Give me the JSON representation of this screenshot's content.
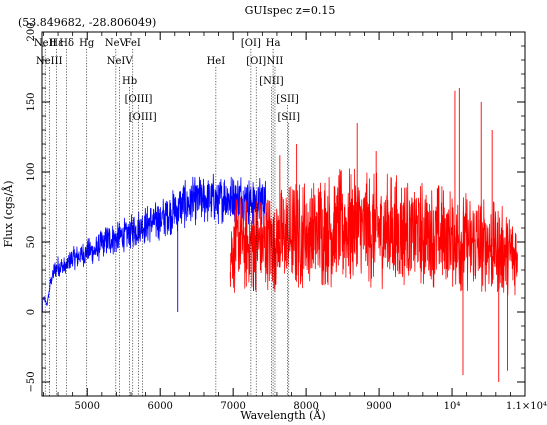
{
  "chart_data": {
    "type": "line",
    "title": "GUIspec z=0.15",
    "subtitle": "(53.849682, -28.806049)",
    "xlabel": "Wavelength (Å)",
    "ylabel": "Flux (cgs/Å)",
    "xlim": [
      4380,
      11000
    ],
    "ylim": [
      -60,
      200
    ],
    "x_ticks": [
      {
        "value": 5000,
        "label": "5000"
      },
      {
        "value": 6000,
        "label": "6000"
      },
      {
        "value": 7000,
        "label": "7000"
      },
      {
        "value": 8000,
        "label": "8000"
      },
      {
        "value": 9000,
        "label": "9000"
      },
      {
        "value": 10000,
        "label": "10⁴"
      },
      {
        "value": 11000,
        "label": "1.1×10⁴"
      }
    ],
    "y_ticks": [
      {
        "value": -50,
        "label": "−50"
      },
      {
        "value": 0,
        "label": "0"
      },
      {
        "value": 50,
        "label": "50"
      },
      {
        "value": 100,
        "label": "100"
      },
      {
        "value": 150,
        "label": "150"
      },
      {
        "value": 200,
        "label": "200"
      }
    ],
    "grid": false,
    "series": [
      {
        "color": "#0000ff",
        "noise_level": 0.14,
        "points": [
          {
            "x": 4400,
            "y": 10
          },
          {
            "x": 4450,
            "y": 5
          },
          {
            "x": 4500,
            "y": 22
          },
          {
            "x": 4550,
            "y": 30
          },
          {
            "x": 4600,
            "y": 33
          },
          {
            "x": 4700,
            "y": 32
          },
          {
            "x": 4800,
            "y": 38
          },
          {
            "x": 4900,
            "y": 40
          },
          {
            "x": 5000,
            "y": 43
          },
          {
            "x": 5100,
            "y": 44
          },
          {
            "x": 5200,
            "y": 48
          },
          {
            "x": 5300,
            "y": 52
          },
          {
            "x": 5400,
            "y": 52
          },
          {
            "x": 5500,
            "y": 55
          },
          {
            "x": 5600,
            "y": 57
          },
          {
            "x": 5700,
            "y": 60
          },
          {
            "x": 5800,
            "y": 62
          },
          {
            "x": 5900,
            "y": 64
          },
          {
            "x": 6000,
            "y": 66
          },
          {
            "x": 6100,
            "y": 70
          },
          {
            "x": 6200,
            "y": 72
          },
          {
            "x": 6300,
            "y": 76
          },
          {
            "x": 6400,
            "y": 78
          },
          {
            "x": 6500,
            "y": 80
          },
          {
            "x": 6600,
            "y": 80
          },
          {
            "x": 6700,
            "y": 82
          },
          {
            "x": 6800,
            "y": 80
          },
          {
            "x": 6900,
            "y": 82
          },
          {
            "x": 7000,
            "y": 80
          },
          {
            "x": 7100,
            "y": 82
          },
          {
            "x": 7200,
            "y": 80
          },
          {
            "x": 7300,
            "y": 78
          },
          {
            "x": 7400,
            "y": 80
          },
          {
            "x": 7460,
            "y": 78
          }
        ],
        "dips": [
          {
            "x": 4385,
            "y": 0
          },
          {
            "x": 6240,
            "y": 0
          },
          {
            "x": 7280,
            "y": 15
          }
        ]
      },
      {
        "color": "#ff0000",
        "noise_level": 0.45,
        "points": [
          {
            "x": 6960,
            "y": 40
          },
          {
            "x": 7000,
            "y": 45
          },
          {
            "x": 7100,
            "y": 50
          },
          {
            "x": 7200,
            "y": 48
          },
          {
            "x": 7300,
            "y": 50
          },
          {
            "x": 7400,
            "y": 48
          },
          {
            "x": 7500,
            "y": 50
          },
          {
            "x": 7600,
            "y": 52
          },
          {
            "x": 7700,
            "y": 52
          },
          {
            "x": 7800,
            "y": 54
          },
          {
            "x": 7900,
            "y": 55
          },
          {
            "x": 8000,
            "y": 56
          },
          {
            "x": 8200,
            "y": 58
          },
          {
            "x": 8400,
            "y": 60
          },
          {
            "x": 8600,
            "y": 60
          },
          {
            "x": 8800,
            "y": 58
          },
          {
            "x": 9000,
            "y": 58
          },
          {
            "x": 9200,
            "y": 58
          },
          {
            "x": 9400,
            "y": 56
          },
          {
            "x": 9600,
            "y": 55
          },
          {
            "x": 9800,
            "y": 54
          },
          {
            "x": 10000,
            "y": 52
          },
          {
            "x": 10200,
            "y": 50
          },
          {
            "x": 10400,
            "y": 48
          },
          {
            "x": 10600,
            "y": 46
          },
          {
            "x": 10800,
            "y": 42
          },
          {
            "x": 10900,
            "y": 40
          }
        ],
        "spikes": [
          {
            "x": 7640,
            "y": 112
          },
          {
            "x": 7870,
            "y": 120
          },
          {
            "x": 8700,
            "y": 135
          },
          {
            "x": 8960,
            "y": 115
          },
          {
            "x": 10040,
            "y": 158
          },
          {
            "x": 10100,
            "y": 160
          },
          {
            "x": 10400,
            "y": 150
          },
          {
            "x": 10550,
            "y": 130
          }
        ],
        "dips": [
          {
            "x": 10150,
            "y": -45
          },
          {
            "x": 10640,
            "y": -50
          },
          {
            "x": 10760,
            "y": -42
          }
        ]
      }
    ],
    "emission_lines": [
      {
        "x": 4424,
        "label": "NeII",
        "level": 0
      },
      {
        "x": 4480,
        "label": "NeIII",
        "level": 1
      },
      {
        "x": 4577,
        "label": "Hε",
        "level": 0
      },
      {
        "x": 4718,
        "label": "Hδ",
        "level": 0
      },
      {
        "x": 4993,
        "label": "Hg",
        "level": 0
      },
      {
        "x": 5392,
        "label": "NeV",
        "level": 0
      },
      {
        "x": 5444,
        "label": "NeIV",
        "level": 1
      },
      {
        "x": 5580,
        "label": "Hb",
        "level": 2
      },
      {
        "x": 5624,
        "label": "FeI",
        "level": 0
      },
      {
        "x": 5703,
        "label": "[OIII]",
        "level": 3
      },
      {
        "x": 5760,
        "label": "[OIII]",
        "level": 4
      },
      {
        "x": 6763,
        "label": "HeI",
        "level": 1
      },
      {
        "x": 7243,
        "label": "[OI]",
        "level": 0
      },
      {
        "x": 7316,
        "label": "[OI]",
        "level": 1
      },
      {
        "x": 7547,
        "label": "Ha",
        "level": 0
      },
      {
        "x": 7525,
        "label": "[NII]",
        "level": 2
      },
      {
        "x": 7573,
        "label": "NII",
        "level": 1
      },
      {
        "x": 7745,
        "label": "[SII]",
        "level": 3
      },
      {
        "x": 7762,
        "label": "[SII]",
        "level": 4
      }
    ]
  }
}
